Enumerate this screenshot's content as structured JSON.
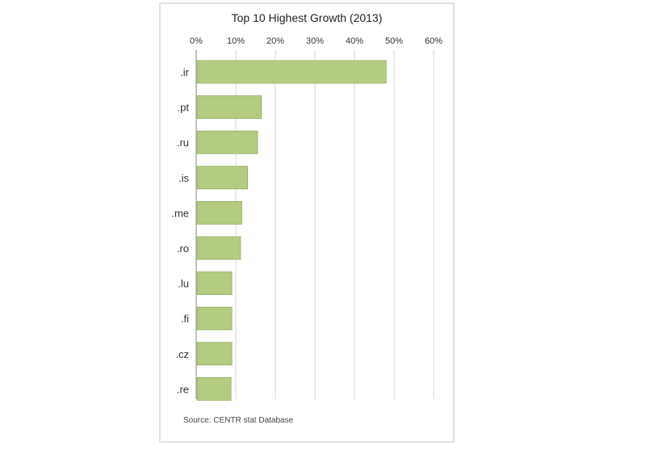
{
  "chart_data": {
    "type": "bar",
    "orientation": "horizontal",
    "title": "Top 10 Highest Growth (2013)",
    "categories": [
      ".ir",
      ".pt",
      ".ru",
      ".is",
      ".me",
      ".ro",
      ".lu",
      ".fi",
      ".cz",
      ".re"
    ],
    "values": [
      48,
      16.5,
      15.5,
      13,
      11.5,
      11.2,
      9,
      9,
      9,
      8.8
    ],
    "xlim": [
      0,
      60
    ],
    "x_ticks": [
      "0%",
      "10%",
      "20%",
      "30%",
      "40%",
      "50%",
      "60%"
    ],
    "x_tick_values": [
      0,
      10,
      20,
      30,
      40,
      50,
      60
    ],
    "x_axis_position": "top",
    "grid": true,
    "bar_color": "#b3cc82",
    "bar_edge_color": "#8fad5c",
    "source": "Source: CENTR stat Database"
  }
}
